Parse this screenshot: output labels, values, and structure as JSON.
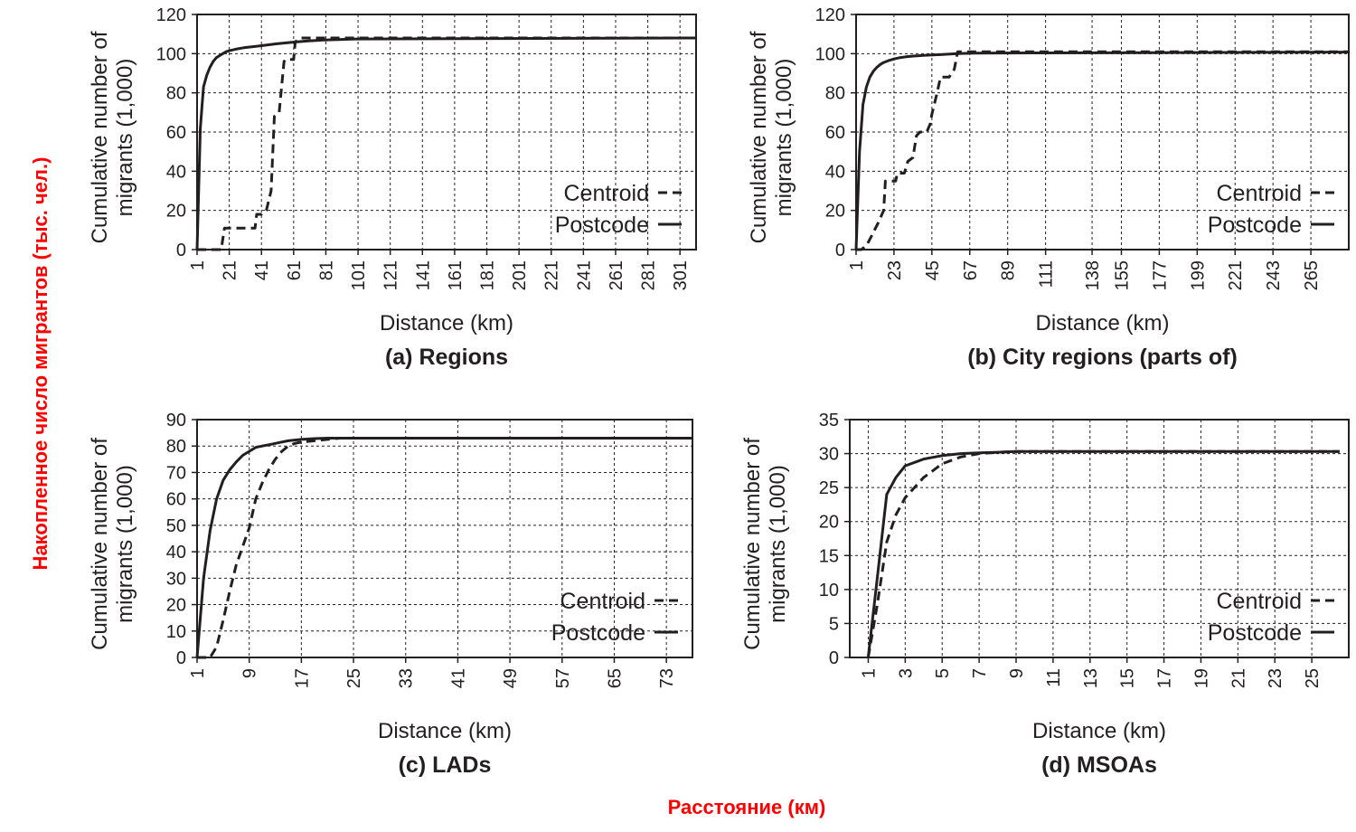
{
  "overlay": {
    "y_label": "Накопленное число мигрантов (тыс. чел.)",
    "x_label": "Расстояние (км)",
    "color": "#ff0000"
  },
  "colors": {
    "ink": "#231f20",
    "background": "#ffffff"
  },
  "chart_data": [
    {
      "id": "a",
      "type": "line",
      "title": "(a) Regions",
      "xlabel": "Distance (km)",
      "ylabel_line1": "Cumulative number of",
      "ylabel_line2": "migrants (1,000)",
      "xlim": [
        1,
        311
      ],
      "ylim": [
        0,
        120
      ],
      "xticks": [
        1,
        21,
        41,
        61,
        81,
        101,
        121,
        141,
        161,
        181,
        201,
        221,
        241,
        261,
        281,
        301
      ],
      "yticks": [
        0,
        20,
        40,
        60,
        80,
        100,
        120
      ],
      "legend": {
        "position": "lower-right"
      },
      "series": [
        {
          "name": "Centroid",
          "style": "dashed",
          "x": [
            1,
            16,
            18,
            37,
            38,
            41,
            44,
            47,
            49,
            52,
            55,
            56,
            61,
            62,
            65,
            311
          ],
          "y": [
            0,
            0,
            11,
            11,
            18,
            18,
            20,
            30,
            68,
            70,
            96,
            97,
            97,
            106,
            108,
            108
          ]
        },
        {
          "name": "Postcode",
          "style": "solid",
          "x": [
            1,
            3,
            5,
            7,
            9,
            11,
            13,
            15,
            17,
            19,
            21,
            25,
            30,
            35,
            40,
            50,
            60,
            70,
            80,
            100,
            311
          ],
          "y": [
            0,
            62,
            83,
            89,
            93,
            96,
            98,
            99,
            100,
            101,
            101.5,
            102.3,
            103,
            103.5,
            104,
            105,
            105.8,
            106.5,
            107,
            107.5,
            108
          ]
        }
      ]
    },
    {
      "id": "b",
      "type": "line",
      "title": "(b) City regions (parts of)",
      "xlabel": "Distance (km)",
      "ylabel_line1": "Cumulative number of",
      "ylabel_line2": "migrants (1,000)",
      "xlim": [
        1,
        287
      ],
      "ylim": [
        0,
        120
      ],
      "xticks": [
        1,
        23,
        45,
        67,
        89,
        111,
        138,
        155,
        177,
        199,
        221,
        243,
        265
      ],
      "yticks": [
        0,
        20,
        40,
        60,
        80,
        100,
        120
      ],
      "legend": {
        "position": "lower-right"
      },
      "series": [
        {
          "name": "Centroid",
          "style": "dashed",
          "x": [
            1,
            4,
            7,
            10,
            14,
            17,
            18,
            24,
            25,
            29,
            31,
            34,
            36,
            38,
            42,
            44,
            45,
            48,
            50,
            55,
            58,
            60,
            287
          ],
          "y": [
            0,
            0,
            2,
            7,
            14,
            20,
            35,
            35,
            39,
            39,
            45,
            47,
            58,
            60,
            60,
            64,
            69,
            80,
            88,
            88,
            92,
            101,
            101
          ]
        },
        {
          "name": "Postcode",
          "style": "solid",
          "x": [
            1,
            3,
            5,
            7,
            9,
            11,
            13,
            15,
            17,
            20,
            23,
            26,
            30,
            35,
            40,
            50,
            60,
            70,
            287
          ],
          "y": [
            0,
            50,
            74,
            83,
            88,
            91,
            93,
            94.5,
            95.5,
            96.5,
            97.3,
            97.9,
            98.4,
            98.8,
            99.1,
            99.5,
            100,
            100.3,
            100.8
          ]
        }
      ]
    },
    {
      "id": "c",
      "type": "line",
      "title": "(c) LADs",
      "xlabel": "Distance (km)",
      "ylabel_line1": "Cumulative number of",
      "ylabel_line2": "migrants (1,000)",
      "xlim": [
        1,
        77
      ],
      "ylim": [
        0,
        90
      ],
      "xticks": [
        1,
        9,
        17,
        25,
        33,
        41,
        49,
        57,
        65,
        73
      ],
      "yticks": [
        0,
        10,
        20,
        30,
        40,
        50,
        60,
        70,
        80,
        90
      ],
      "legend": {
        "position": "lower-right"
      },
      "series": [
        {
          "name": "Centroid",
          "style": "dashed",
          "x": [
            1,
            3,
            4,
            5,
            6,
            7,
            8,
            9,
            10,
            11,
            12,
            13,
            14,
            15,
            16,
            17,
            19,
            21,
            23,
            25,
            77
          ],
          "y": [
            0,
            0,
            4,
            14,
            25,
            35,
            42,
            49,
            60,
            66,
            71,
            75,
            78,
            80,
            81,
            81.5,
            82,
            82.5,
            83,
            83,
            83
          ]
        },
        {
          "name": "Postcode",
          "style": "solid",
          "x": [
            1,
            2,
            3,
            4,
            5,
            6,
            7,
            8,
            9,
            10,
            11,
            12,
            13,
            14,
            15,
            17,
            19,
            21,
            25,
            77
          ],
          "y": [
            0,
            30,
            48,
            60,
            67,
            71,
            74,
            76.5,
            78,
            79.5,
            80,
            80.5,
            81,
            81.5,
            82,
            82.5,
            82.8,
            83,
            83,
            83
          ]
        }
      ]
    },
    {
      "id": "d",
      "type": "line",
      "title": "(d) MSOAs",
      "xlabel": "Distance (km)",
      "ylabel_line1": "Cumulative number of",
      "ylabel_line2": "migrants (1,000)",
      "xlim": [
        0,
        27
      ],
      "ylim": [
        0,
        35
      ],
      "xticks": [
        1,
        3,
        5,
        7,
        9,
        11,
        13,
        15,
        17,
        19,
        21,
        23,
        25
      ],
      "yticks": [
        0,
        5,
        10,
        15,
        20,
        25,
        30,
        35
      ],
      "legend": {
        "position": "lower-right"
      },
      "series": [
        {
          "name": "Centroid",
          "style": "dashed",
          "x": [
            1,
            1.5,
            2,
            2.5,
            3,
            3.5,
            4,
            4.5,
            5,
            6,
            7,
            8,
            9,
            26.5
          ],
          "y": [
            0,
            8,
            17,
            21,
            23.5,
            25,
            26.5,
            27.5,
            28.5,
            29.5,
            30,
            30.2,
            30.3,
            30.3
          ]
        },
        {
          "name": "Postcode",
          "style": "solid",
          "x": [
            1,
            1.5,
            2,
            2.5,
            3,
            4,
            5,
            6,
            7,
            8,
            9,
            26.5
          ],
          "y": [
            0,
            12,
            24,
            26.5,
            28.2,
            29.2,
            29.7,
            30,
            30.1,
            30.2,
            30.3,
            30.3
          ]
        }
      ]
    }
  ]
}
